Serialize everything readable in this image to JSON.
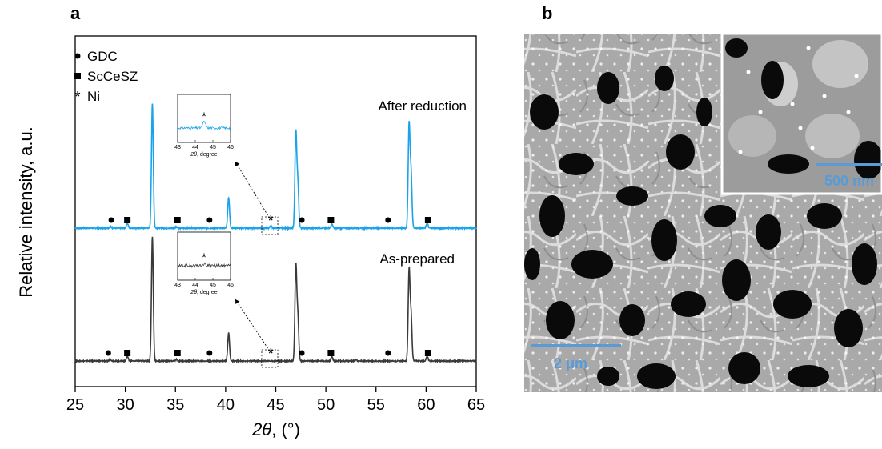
{
  "panel_a": {
    "letter": "a"
  },
  "panel_b": {
    "letter": "b",
    "scale_main": "2 μm",
    "scale_inset": "500 nm"
  },
  "colors": {
    "after": "#1aa3e8",
    "asprep": "#3a3a3a",
    "scalebar": "#5b9bd5"
  },
  "chart_data": {
    "type": "line",
    "xlabel_base": "2θ",
    "xlabel_unit": ", (°)",
    "ylabel": "Relative intensity, a.u.",
    "xlim": [
      25,
      65
    ],
    "xticks": [
      25,
      30,
      35,
      40,
      45,
      50,
      55,
      60,
      65
    ],
    "legend": [
      {
        "marker": "circle",
        "label": "GDC"
      },
      {
        "marker": "square",
        "label": "ScCeSZ"
      },
      {
        "marker": "star",
        "label": "Ni"
      }
    ],
    "series": [
      {
        "name": "After reduction",
        "color": "#1aa3e8",
        "peaks": [
          {
            "x": 28.5,
            "h": 2
          },
          {
            "x": 30.2,
            "h": 6
          },
          {
            "x": 32.7,
            "h": 155
          },
          {
            "x": 35.1,
            "h": 2
          },
          {
            "x": 40.3,
            "h": 38
          },
          {
            "x": 44.5,
            "h": 3
          },
          {
            "x": 47.0,
            "h": 118
          },
          {
            "x": 47.2,
            "h": 55
          },
          {
            "x": 50.6,
            "h": 5
          },
          {
            "x": 58.3,
            "h": 128
          },
          {
            "x": 58.5,
            "h": 66
          },
          {
            "x": 60.1,
            "h": 6
          }
        ],
        "markers": [
          {
            "x": 28.6,
            "type": "circle"
          },
          {
            "x": 30.2,
            "type": "square"
          },
          {
            "x": 35.2,
            "type": "square"
          },
          {
            "x": 38.4,
            "type": "circle"
          },
          {
            "x": 44.5,
            "type": "star"
          },
          {
            "x": 47.6,
            "type": "circle"
          },
          {
            "x": 50.5,
            "type": "square"
          },
          {
            "x": 56.2,
            "type": "circle"
          },
          {
            "x": 60.2,
            "type": "square"
          }
        ],
        "inset": {
          "xlim": [
            43,
            46
          ],
          "xticks": [
            43,
            44,
            45,
            46
          ],
          "xlabel_base": "2θ",
          "xlabel_unit": ", degree",
          "peak_x": 44.5
        }
      },
      {
        "name": "As-prepared",
        "color": "#3a3a3a",
        "peaks": [
          {
            "x": 28.5,
            "h": 2
          },
          {
            "x": 30.2,
            "h": 6
          },
          {
            "x": 32.7,
            "h": 155
          },
          {
            "x": 35.1,
            "h": 2
          },
          {
            "x": 40.3,
            "h": 35
          },
          {
            "x": 47.0,
            "h": 118
          },
          {
            "x": 47.2,
            "h": 55
          },
          {
            "x": 50.6,
            "h": 5
          },
          {
            "x": 53.0,
            "h": 2
          },
          {
            "x": 58.3,
            "h": 112
          },
          {
            "x": 58.5,
            "h": 55
          },
          {
            "x": 60.1,
            "h": 6
          }
        ],
        "markers": [
          {
            "x": 28.3,
            "type": "circle"
          },
          {
            "x": 30.2,
            "type": "square"
          },
          {
            "x": 35.2,
            "type": "square"
          },
          {
            "x": 38.4,
            "type": "circle"
          },
          {
            "x": 44.5,
            "type": "star"
          },
          {
            "x": 47.6,
            "type": "circle"
          },
          {
            "x": 50.5,
            "type": "square"
          },
          {
            "x": 56.2,
            "type": "circle"
          },
          {
            "x": 60.2,
            "type": "square"
          }
        ],
        "inset": {
          "xlim": [
            43,
            46
          ],
          "xticks": [
            43,
            44,
            45,
            46
          ],
          "xlabel_base": "2θ",
          "xlabel_unit": ", degree",
          "peak_x": 44.5
        }
      }
    ]
  }
}
